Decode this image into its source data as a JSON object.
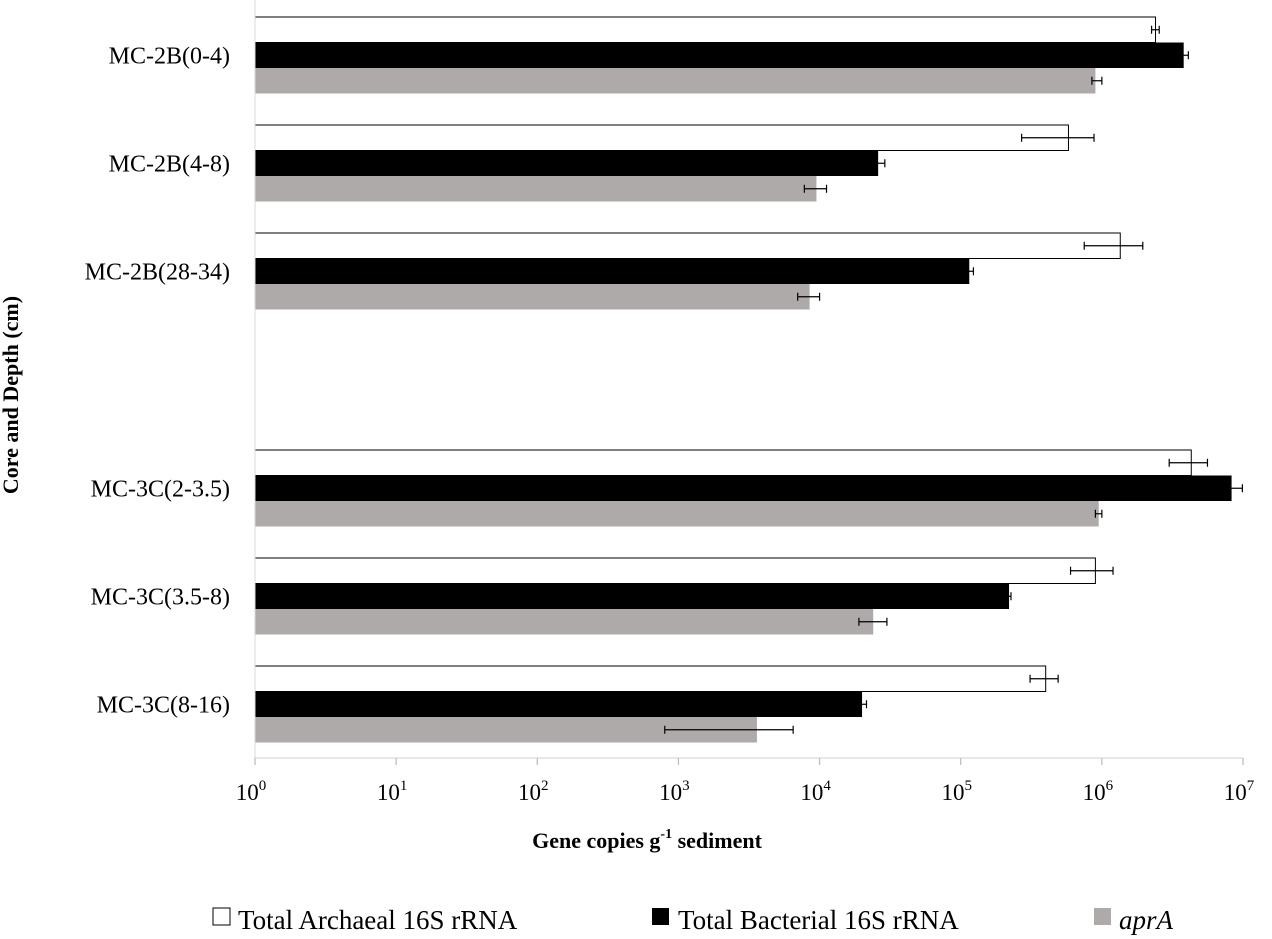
{
  "chart_data": {
    "type": "bar",
    "orientation": "horizontal",
    "x_scale": "log10",
    "xlim": [
      1,
      10000000
    ],
    "x_ticks": [
      {
        "base": "10",
        "exp": "0"
      },
      {
        "base": "10",
        "exp": "1"
      },
      {
        "base": "10",
        "exp": "2"
      },
      {
        "base": "10",
        "exp": "3"
      },
      {
        "base": "10",
        "exp": "4"
      },
      {
        "base": "10",
        "exp": "5"
      },
      {
        "base": "10",
        "exp": "6"
      },
      {
        "base": "10",
        "exp": "7"
      }
    ],
    "xlabel": {
      "pre": "Gene copies g",
      "sup": "-1",
      "post": " sedimen​t"
    },
    "ylabel": "Core  and Depth (cm)",
    "categories": [
      "MC-2B(0-4)",
      "MC-2B(4-8)",
      "MC-2B(28-34)",
      "MC-3C(2-3.5)",
      "MC-3C(3.5-8)",
      "MC-3C(8-16)"
    ],
    "series": [
      {
        "name": "Total Archaeal 16S rRNA",
        "color": "#ffffff",
        "stroke": "#000000",
        "values": [
          2400000,
          580000,
          1350000,
          4300000,
          900000,
          400000
        ],
        "error_low": [
          2250000,
          270000,
          750000,
          3000000,
          600000,
          310000
        ],
        "error_high": [
          2550000,
          880000,
          1950000,
          5600000,
          1200000,
          490000
        ]
      },
      {
        "name": "Total Bacterial 16S rRNA",
        "color": "#000000",
        "stroke": "#000000",
        "values": [
          3800000,
          26000,
          115000,
          8300000,
          220000,
          20000
        ],
        "error_low": [
          3500000,
          23000,
          107000,
          7700000,
          213000,
          18500
        ],
        "error_high": [
          4100000,
          29000,
          123000,
          9900000,
          227000,
          21500
        ]
      },
      {
        "name": "aprA",
        "color": "#aeaaaa",
        "stroke": "#aeaaaa",
        "values": [
          900000,
          9500,
          8500,
          950000,
          24000,
          3600
        ],
        "error_low": [
          850000,
          7800,
          7000,
          900000,
          19000,
          800
        ],
        "error_high": [
          1000000,
          11200,
          10000,
          1000000,
          30000,
          6500
        ]
      }
    ],
    "legend_position": "bottom",
    "grid": false
  }
}
